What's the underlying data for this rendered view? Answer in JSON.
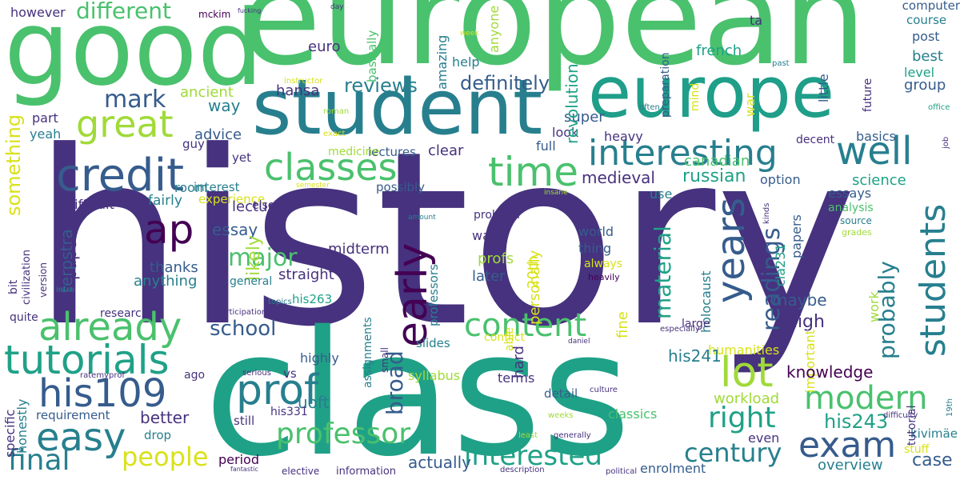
{
  "colors": {
    "background": "#ffffff",
    "palette": [
      "#440154",
      "#46327e",
      "#365c8d",
      "#277f8e",
      "#1fa187",
      "#4ac16d",
      "#a0da39",
      "#fde725"
    ]
  },
  "words": [
    {
      "text": "history",
      "color": "#46327e"
    },
    {
      "text": "class",
      "color": "#1fa187"
    },
    {
      "text": "european",
      "color": "#4ac16d"
    },
    {
      "text": "good",
      "color": "#4ac16d"
    },
    {
      "text": "europe",
      "color": "#1f9e89"
    },
    {
      "text": "student",
      "color": "#277f8e"
    },
    {
      "text": "credit",
      "color": "#365c8d"
    },
    {
      "text": "great",
      "color": "#a0da39"
    },
    {
      "text": "classes",
      "color": "#4ac16d"
    },
    {
      "text": "time",
      "color": "#4ac16d"
    },
    {
      "text": "interesting",
      "color": "#277f8e"
    },
    {
      "text": "well",
      "color": "#277f8e"
    },
    {
      "text": "already",
      "color": "#4ac16d"
    },
    {
      "text": "tutorials",
      "color": "#1fa187"
    },
    {
      "text": "easy",
      "color": "#277f8e"
    },
    {
      "text": "his109",
      "color": "#365c8d"
    },
    {
      "text": "final",
      "color": "#277f8e"
    },
    {
      "text": "prof",
      "color": "#277f8e"
    },
    {
      "text": "ap",
      "color": "#440154"
    },
    {
      "text": "mark",
      "color": "#365c8d"
    },
    {
      "text": "content",
      "color": "#4ac16d"
    },
    {
      "text": "early",
      "color": "#440154"
    },
    {
      "text": "lot",
      "color": "#a0da39"
    },
    {
      "text": "years",
      "color": "#365c8d"
    },
    {
      "text": "students",
      "color": "#277f8e"
    },
    {
      "text": "exam",
      "color": "#365c8d"
    },
    {
      "text": "modern",
      "color": "#4ac16d"
    },
    {
      "text": "professor",
      "color": "#4ac16d"
    },
    {
      "text": "people",
      "color": "#d8e219"
    },
    {
      "text": "interested",
      "color": "#1fa187"
    },
    {
      "text": "century",
      "color": "#277f8e"
    },
    {
      "text": "right",
      "color": "#1fa187"
    },
    {
      "text": "school",
      "color": "#365c8d"
    },
    {
      "text": "major",
      "color": "#4ac16d"
    },
    {
      "text": "different",
      "color": "#4ac16d"
    },
    {
      "text": "definitely",
      "color": "#365c8d"
    },
    {
      "text": "reviews",
      "color": "#277f8e"
    },
    {
      "text": "something",
      "color": "#d8e219"
    },
    {
      "text": "readings",
      "color": "#365c8d"
    },
    {
      "text": "material",
      "color": "#1fa187"
    },
    {
      "text": "broad",
      "color": "#365c8d"
    },
    {
      "text": "probably",
      "color": "#277f8e"
    },
    {
      "text": "however",
      "color": "#46327e"
    },
    {
      "text": "mckim",
      "color": "#440154"
    },
    {
      "text": "euro",
      "color": "#46327e"
    },
    {
      "text": "help",
      "color": "#277f8e"
    },
    {
      "text": "hansa",
      "color": "#46327e"
    },
    {
      "text": "way",
      "color": "#277f8e"
    },
    {
      "text": "ancient",
      "color": "#a0da39"
    },
    {
      "text": "part",
      "color": "#46327e"
    },
    {
      "text": "yeah",
      "color": "#277f8e"
    },
    {
      "text": "advice",
      "color": "#365c8d"
    },
    {
      "text": "guy",
      "color": "#46327e"
    },
    {
      "text": "yet",
      "color": "#46327e"
    },
    {
      "text": "super",
      "color": "#365c8d"
    },
    {
      "text": "look",
      "color": "#46327e"
    },
    {
      "text": "heavy",
      "color": "#46327e"
    },
    {
      "text": "full",
      "color": "#365c8d"
    },
    {
      "text": "clear",
      "color": "#46327e"
    },
    {
      "text": "lectures",
      "color": "#365c8d"
    },
    {
      "text": "medicine",
      "color": "#a0da39"
    },
    {
      "text": "possibly",
      "color": "#365c8d"
    },
    {
      "text": "room",
      "color": "#277f8e"
    },
    {
      "text": "interest",
      "color": "#277f8e"
    },
    {
      "text": "experience",
      "color": "#d8e219"
    },
    {
      "text": "difficult",
      "color": "#46327e"
    },
    {
      "text": "fairly",
      "color": "#277f8e"
    },
    {
      "text": "lecture",
      "color": "#46327e"
    },
    {
      "text": "essay",
      "color": "#365c8d"
    },
    {
      "text": "likely",
      "color": "#a0da39"
    },
    {
      "text": "paper",
      "color": "#46327e"
    },
    {
      "text": "terpstra",
      "color": "#365c8d"
    },
    {
      "text": "midterm",
      "color": "#46327e"
    },
    {
      "text": "thanks",
      "color": "#365c8d"
    },
    {
      "text": "anything",
      "color": "#277f8e"
    },
    {
      "text": "straight",
      "color": "#46327e"
    },
    {
      "text": "general",
      "color": "#277f8e"
    },
    {
      "text": "profs",
      "color": "#a0da39"
    },
    {
      "text": "20th",
      "color": "#d8e219"
    },
    {
      "text": "later",
      "color": "#365c8d"
    },
    {
      "text": "wars",
      "color": "#46327e"
    },
    {
      "text": "problem",
      "color": "#46327e"
    },
    {
      "text": "world",
      "color": "#365c8d"
    },
    {
      "text": "thing",
      "color": "#365c8d"
    },
    {
      "text": "always",
      "color": "#d8e219"
    },
    {
      "text": "heavily",
      "color": "#440154"
    },
    {
      "text": "true",
      "color": "#46327e"
    },
    {
      "text": "russian",
      "color": "#1fa187"
    },
    {
      "text": "medieval",
      "color": "#46327e"
    },
    {
      "text": "canadian",
      "color": "#4ac16d"
    },
    {
      "text": "option",
      "color": "#365c8d"
    },
    {
      "text": "science",
      "color": "#1fa187"
    },
    {
      "text": "essays",
      "color": "#365c8d"
    },
    {
      "text": "basics",
      "color": "#365c8d"
    },
    {
      "text": "decent",
      "color": "#46327e"
    },
    {
      "text": "use",
      "color": "#277f8e"
    },
    {
      "text": "maybe",
      "color": "#365c8d"
    },
    {
      "text": "high",
      "color": "#46327e"
    },
    {
      "text": "cla231",
      "color": "#1fa187"
    },
    {
      "text": "papers",
      "color": "#365c8d"
    },
    {
      "text": "holocaust",
      "color": "#277f8e"
    },
    {
      "text": "analysis",
      "color": "#4ac16d"
    },
    {
      "text": "source",
      "color": "#277f8e"
    },
    {
      "text": "grades",
      "color": "#a0da39"
    },
    {
      "text": "kinds",
      "color": "#46327e"
    },
    {
      "text": "work",
      "color": "#a0da39"
    },
    {
      "text": "large",
      "color": "#46327e"
    },
    {
      "text": "humanities",
      "color": "#d8e219"
    },
    {
      "text": "important",
      "color": "#d8e219"
    },
    {
      "text": "knowledge",
      "color": "#440154"
    },
    {
      "text": "his243",
      "color": "#1fa187"
    },
    {
      "text": "workload",
      "color": "#a0da39"
    },
    {
      "text": "his241",
      "color": "#277f8e"
    },
    {
      "text": "classics",
      "color": "#4ac16d"
    },
    {
      "text": "terms",
      "color": "#46327e"
    },
    {
      "text": "detail",
      "color": "#365c8d"
    },
    {
      "text": "syllabus",
      "color": "#a0da39"
    },
    {
      "text": "hard",
      "color": "#46327e"
    },
    {
      "text": "fine",
      "color": "#d8e219"
    },
    {
      "text": "conflict",
      "color": "#d8e219"
    },
    {
      "text": "slides",
      "color": "#277f8e"
    },
    {
      "text": "highly",
      "color": "#365c8d"
    },
    {
      "text": "vs",
      "color": "#46327e"
    },
    {
      "text": "assignments",
      "color": "#277f8e"
    },
    {
      "text": "small",
      "color": "#46327e"
    },
    {
      "text": "able",
      "color": "#d8e219"
    },
    {
      "text": "personally",
      "color": "#d8e219"
    },
    {
      "text": "professors",
      "color": "#277f8e"
    },
    {
      "text": "better",
      "color": "#46327e"
    },
    {
      "text": "requirement",
      "color": "#365c8d"
    },
    {
      "text": "uoft",
      "color": "#277f8e"
    },
    {
      "text": "drop",
      "color": "#277f8e"
    },
    {
      "text": "his331",
      "color": "#46327e"
    },
    {
      "text": "still",
      "color": "#46327e"
    },
    {
      "text": "period",
      "color": "#440154"
    },
    {
      "text": "actually",
      "color": "#365c8d"
    },
    {
      "text": "elective",
      "color": "#46327e"
    },
    {
      "text": "information",
      "color": "#46327e"
    },
    {
      "text": "enrolment",
      "color": "#365c8d"
    },
    {
      "text": "overview",
      "color": "#277f8e"
    },
    {
      "text": "case",
      "color": "#365c8d"
    },
    {
      "text": "even",
      "color": "#46327e"
    },
    {
      "text": "stuff",
      "color": "#d8e219"
    },
    {
      "text": "kivimäe",
      "color": "#277f8e"
    },
    {
      "text": "tutorial",
      "color": "#46327e"
    },
    {
      "text": "specific",
      "color": "#46327e"
    },
    {
      "text": "honestly",
      "color": "#277f8e"
    },
    {
      "text": "ago",
      "color": "#46327e"
    },
    {
      "text": "his263",
      "color": "#1fa187"
    },
    {
      "text": "research",
      "color": "#46327e"
    },
    {
      "text": "quite",
      "color": "#46327e"
    },
    {
      "text": "bit",
      "color": "#46327e"
    },
    {
      "text": "civilization",
      "color": "#46327e"
    },
    {
      "text": "version",
      "color": "#46327e"
    },
    {
      "text": "intro",
      "color": "#277f8e"
    },
    {
      "text": "participation",
      "color": "#46327e"
    },
    {
      "text": "topics",
      "color": "#277f8e"
    },
    {
      "text": "else",
      "color": "#46327e"
    },
    {
      "text": "ratemyprof",
      "color": "#46327e"
    },
    {
      "text": "serious",
      "color": "#46327e"
    },
    {
      "text": "fantastic",
      "color": "#46327e"
    },
    {
      "text": "fucking",
      "color": "#46327e"
    },
    {
      "text": "description",
      "color": "#46327e"
    },
    {
      "text": "political",
      "color": "#46327e"
    },
    {
      "text": "daniel",
      "color": "#46327e"
    },
    {
      "text": "especially",
      "color": "#46327e"
    },
    {
      "text": "culture",
      "color": "#46327e"
    },
    {
      "text": "weeks",
      "color": "#a0da39"
    },
    {
      "text": "generally",
      "color": "#46327e"
    },
    {
      "text": "least",
      "color": "#a0da39"
    },
    {
      "text": "difficulty",
      "color": "#46327e"
    },
    {
      "text": "19th",
      "color": "#277f8e"
    },
    {
      "text": "amount",
      "color": "#277f8e"
    },
    {
      "text": "insane",
      "color": "#a0da39"
    },
    {
      "text": "semester",
      "color": "#d8e219"
    },
    {
      "text": "exact",
      "color": "#d8e219"
    },
    {
      "text": "roman",
      "color": "#a0da39"
    },
    {
      "text": "instructor",
      "color": "#d8e219"
    },
    {
      "text": "basically",
      "color": "#4ac16d"
    },
    {
      "text": "anyone",
      "color": "#a0da39"
    },
    {
      "text": "amazing",
      "color": "#277f8e"
    },
    {
      "text": "revolution",
      "color": "#1fa187"
    },
    {
      "text": "preparation",
      "color": "#365c8d"
    },
    {
      "text": "mind",
      "color": "#d8e219"
    },
    {
      "text": "often",
      "color": "#277f8e"
    },
    {
      "text": "war",
      "color": "#d8e219"
    },
    {
      "text": "ta",
      "color": "#46327e"
    },
    {
      "text": "past",
      "color": "#277f8e"
    },
    {
      "text": "day",
      "color": "#46327e"
    },
    {
      "text": "week",
      "color": "#d8e219"
    },
    {
      "text": "computer",
      "color": "#365c8d"
    },
    {
      "text": "course",
      "color": "#277f8e"
    },
    {
      "text": "post",
      "color": "#365c8d"
    },
    {
      "text": "best",
      "color": "#277f8e"
    },
    {
      "text": "level",
      "color": "#1fa187"
    },
    {
      "text": "group",
      "color": "#365c8d"
    },
    {
      "text": "french",
      "color": "#1fa187"
    },
    {
      "text": "little",
      "color": "#365c8d"
    },
    {
      "text": "future",
      "color": "#46327e"
    },
    {
      "text": "office",
      "color": "#1fa187"
    },
    {
      "text": "job",
      "color": "#46327e"
    }
  ]
}
